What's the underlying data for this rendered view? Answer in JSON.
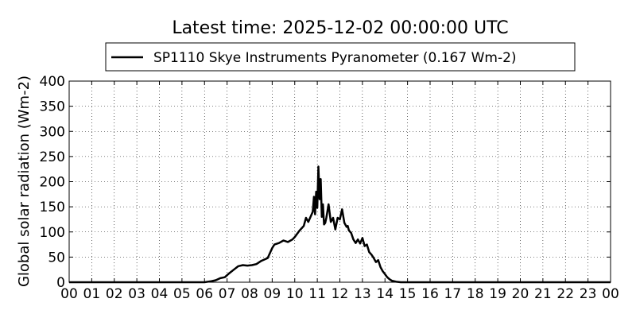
{
  "chart_data": {
    "type": "line",
    "title": "Latest time: 2025-12-02 00:00:00 UTC",
    "xlabel": "",
    "ylabel": "Global solar radiation (Wm-2)",
    "xlim": [
      0,
      24
    ],
    "ylim": [
      0,
      400
    ],
    "x_ticks": [
      0,
      1,
      2,
      3,
      4,
      5,
      6,
      7,
      8,
      9,
      10,
      11,
      12,
      13,
      14,
      15,
      16,
      17,
      18,
      19,
      20,
      21,
      22,
      23,
      24
    ],
    "x_tick_labels": [
      "00",
      "01",
      "02",
      "03",
      "04",
      "05",
      "06",
      "07",
      "08",
      "09",
      "10",
      "11",
      "12",
      "13",
      "14",
      "15",
      "16",
      "17",
      "18",
      "19",
      "20",
      "21",
      "22",
      "23",
      "00"
    ],
    "y_ticks": [
      0,
      50,
      100,
      150,
      200,
      250,
      300,
      350,
      400
    ],
    "y_tick_labels": [
      "0",
      "50",
      "100",
      "150",
      "200",
      "250",
      "300",
      "350",
      "400"
    ],
    "grid": true,
    "legend_position": "top-center",
    "series": [
      {
        "name": "SP1110 Skye Instruments Pyranometer (0.167 Wm-2)",
        "color": "#000000",
        "x": [
          0,
          6.0,
          6.3,
          6.5,
          6.7,
          6.9,
          7.1,
          7.3,
          7.5,
          7.7,
          7.9,
          8.1,
          8.3,
          8.5,
          8.7,
          8.8,
          9.0,
          9.1,
          9.3,
          9.5,
          9.7,
          9.9,
          10.0,
          10.2,
          10.4,
          10.5,
          10.6,
          10.7,
          10.8,
          10.85,
          10.9,
          10.95,
          11.0,
          11.05,
          11.1,
          11.15,
          11.2,
          11.25,
          11.3,
          11.35,
          11.4,
          11.5,
          11.6,
          11.7,
          11.8,
          11.9,
          12.0,
          12.1,
          12.2,
          12.3,
          12.35,
          12.4,
          12.5,
          12.6,
          12.7,
          12.8,
          12.9,
          13.0,
          13.1,
          13.2,
          13.3,
          13.4,
          13.5,
          13.6,
          13.7,
          13.8,
          13.9,
          14.0,
          14.1,
          14.2,
          14.3,
          14.5,
          14.7,
          14.9,
          15.1,
          15.3,
          15.5,
          15.7,
          16.0,
          24
        ],
        "y": [
          0,
          0,
          2,
          4,
          8,
          10,
          18,
          25,
          32,
          34,
          33,
          34,
          36,
          42,
          46,
          48,
          68,
          75,
          78,
          83,
          80,
          85,
          90,
          102,
          112,
          128,
          120,
          130,
          140,
          170,
          135,
          180,
          148,
          230,
          165,
          205,
          130,
          155,
          115,
          118,
          128,
          155,
          120,
          128,
          105,
          128,
          125,
          145,
          118,
          110,
          112,
          103,
          98,
          85,
          78,
          85,
          77,
          88,
          72,
          75,
          60,
          55,
          48,
          40,
          44,
          30,
          22,
          16,
          10,
          6,
          3,
          1,
          0,
          0,
          0,
          0,
          0,
          0,
          0,
          0
        ]
      }
    ]
  }
}
